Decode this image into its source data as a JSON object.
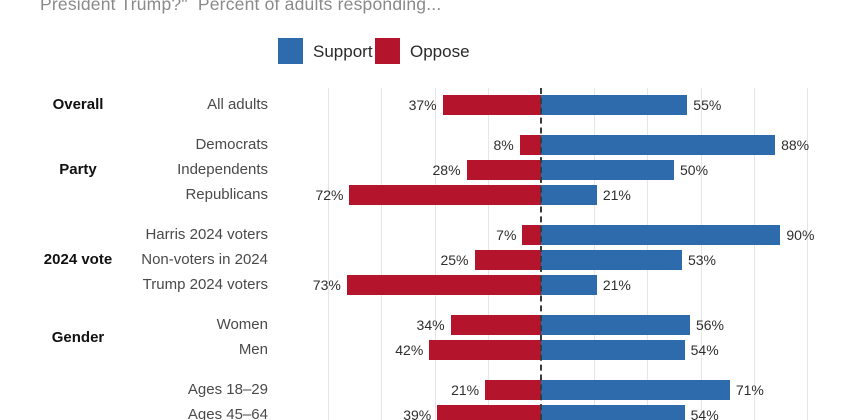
{
  "chart_data": {
    "type": "bar",
    "subtype": "diverging-horizontal",
    "title_visible_text": "President Trump?\"  Percent of adults responding...",
    "legend": [
      {
        "label": "Support",
        "color": "#2d6bac"
      },
      {
        "label": "Oppose",
        "color": "#b5152c"
      }
    ],
    "x_axis": {
      "unit": "percent",
      "gridline_min": -80,
      "gridline_max": 100,
      "gridline_step": 20,
      "zero_line_style": "dashed",
      "gridline_color": "#e6e6e6",
      "zero_line_color": "#3a3a3a"
    },
    "value_suffix": "%",
    "groups": [
      {
        "name": "Overall",
        "rows": [
          {
            "label": "All adults",
            "oppose": 37,
            "support": 55
          }
        ]
      },
      {
        "name": "Party",
        "rows": [
          {
            "label": "Democrats",
            "oppose": 8,
            "support": 88
          },
          {
            "label": "Independents",
            "oppose": 28,
            "support": 50
          },
          {
            "label": "Republicans",
            "oppose": 72,
            "support": 21
          }
        ]
      },
      {
        "name": "2024 vote",
        "rows": [
          {
            "label": "Harris 2024 voters",
            "oppose": 7,
            "support": 90
          },
          {
            "label": "Non-voters in 2024",
            "oppose": 25,
            "support": 53
          },
          {
            "label": "Trump 2024 voters",
            "oppose": 73,
            "support": 21
          }
        ]
      },
      {
        "name": "Gender",
        "rows": [
          {
            "label": "Women",
            "oppose": 34,
            "support": 56
          },
          {
            "label": "Men",
            "oppose": 42,
            "support": 54
          }
        ]
      },
      {
        "name": "",
        "rows": [
          {
            "label": "Ages 18–29",
            "oppose": 21,
            "support": 71
          },
          {
            "label": "Ages 45–64",
            "oppose": 39,
            "support": 54
          }
        ]
      }
    ]
  }
}
